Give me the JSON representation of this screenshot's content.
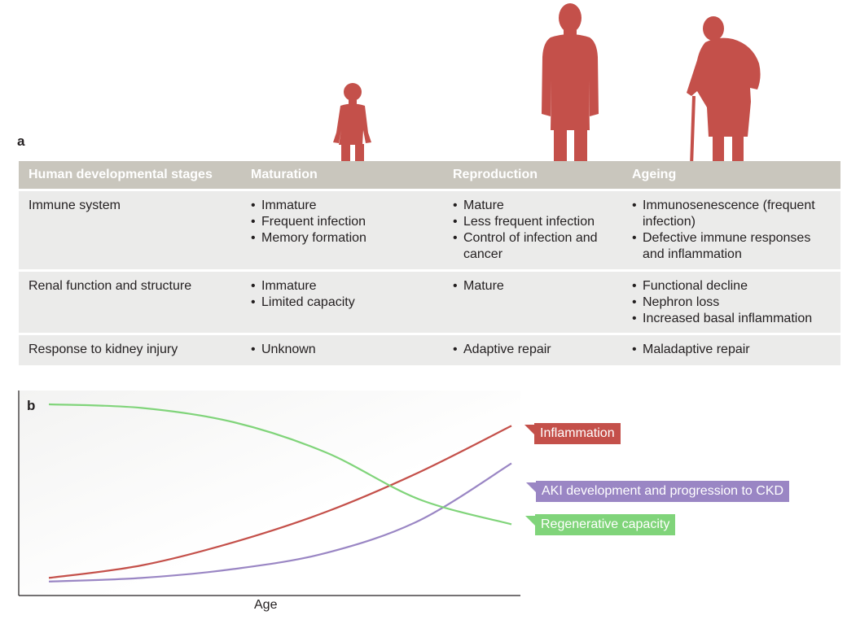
{
  "panels": {
    "a": "a",
    "b": "b"
  },
  "colors": {
    "figure": "#c4504a",
    "header_bg": "#c9c6bd",
    "row_bg": "#ebebea",
    "inflammation": "#c4504a",
    "aki": "#9a86c4",
    "regenerative": "#80d47a"
  },
  "figures": [
    "child-silhouette-icon",
    "adult-silhouette-icon",
    "elderly-with-cane-silhouette-icon"
  ],
  "table": {
    "headers": [
      "Human developmental stages",
      "Maturation",
      "Reproduction",
      "Ageing"
    ],
    "rows": [
      {
        "label": "Immune system",
        "maturation": [
          "Immature",
          "Frequent infection",
          "Memory formation"
        ],
        "reproduction": [
          "Mature",
          "Less frequent infection",
          "Control of infection and cancer"
        ],
        "ageing": [
          "Immunosenescence (frequent infection)",
          "Defective immune responses and inflammation"
        ]
      },
      {
        "label": "Renal function and structure",
        "maturation": [
          "Immature",
          "Limited capacity"
        ],
        "reproduction": [
          "Mature"
        ],
        "ageing": [
          "Functional decline",
          "Nephron loss",
          "Increased basal inflammation"
        ]
      },
      {
        "label": "Response to kidney injury",
        "maturation": [
          "Unknown"
        ],
        "reproduction": [
          "Adaptive repair"
        ],
        "ageing": [
          "Maladaptive repair"
        ]
      }
    ]
  },
  "chart_data": {
    "type": "line",
    "xlabel": "Age",
    "ylabel": "",
    "x_ticks": false,
    "y_ticks": false,
    "xlim": [
      0,
      1
    ],
    "ylim": [
      0,
      1
    ],
    "series": [
      {
        "name": "Inflammation",
        "color": "#c4504a",
        "x": [
          0,
          0.2,
          0.4,
          0.6,
          0.8,
          1.0
        ],
        "y": [
          0.03,
          0.1,
          0.23,
          0.4,
          0.62,
          0.88
        ]
      },
      {
        "name": "AKI development and progression to CKD",
        "color": "#9a86c4",
        "x": [
          0,
          0.2,
          0.4,
          0.6,
          0.8,
          1.0
        ],
        "y": [
          0.01,
          0.03,
          0.08,
          0.17,
          0.35,
          0.67
        ]
      },
      {
        "name": "Regenerative capacity",
        "color": "#80d47a",
        "x": [
          0,
          0.2,
          0.4,
          0.6,
          0.8,
          1.0
        ],
        "y": [
          1.0,
          0.98,
          0.9,
          0.73,
          0.47,
          0.33
        ]
      }
    ]
  }
}
